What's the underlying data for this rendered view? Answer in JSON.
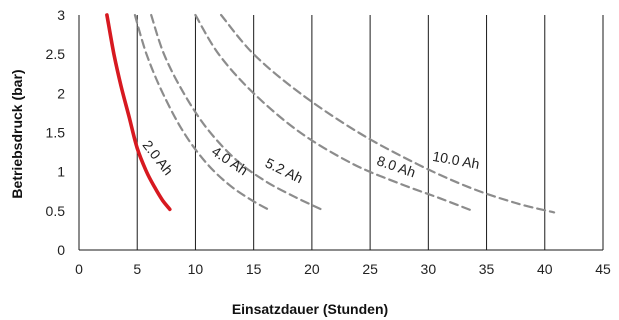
{
  "chart_data": {
    "type": "line",
    "xlabel": "Einsatzdauer (Stunden)",
    "ylabel": "Betriebsdruck (bar)",
    "xlim": [
      0,
      45
    ],
    "ylim": [
      0,
      3
    ],
    "x_ticks": [
      "0",
      "5",
      "10",
      "15",
      "20",
      "25",
      "30",
      "35",
      "40",
      "45"
    ],
    "y_ticks": [
      "0",
      "0.5",
      "1",
      "1.5",
      "2",
      "2.5",
      "3"
    ],
    "grid": "vertical lines only",
    "series": [
      {
        "name": "2.0 Ah",
        "color": "#d71920",
        "style": "solid",
        "points": [
          [
            2.4,
            3.0
          ],
          [
            3.0,
            2.5
          ],
          [
            3.6,
            2.1
          ],
          [
            4.3,
            1.7
          ],
          [
            5.0,
            1.3
          ],
          [
            5.8,
            1.0
          ],
          [
            6.5,
            0.8
          ],
          [
            7.2,
            0.63
          ],
          [
            7.8,
            0.52
          ]
        ]
      },
      {
        "name": "4.0 Ah",
        "color": "#8c8c8c",
        "style": "dashed",
        "points": [
          [
            4.8,
            3.0
          ],
          [
            5.8,
            2.5
          ],
          [
            7.2,
            2.0
          ],
          [
            9.0,
            1.5
          ],
          [
            11.0,
            1.1
          ],
          [
            13.0,
            0.82
          ],
          [
            15.0,
            0.62
          ],
          [
            16.5,
            0.5
          ]
        ]
      },
      {
        "name": "5.2 Ah",
        "color": "#8c8c8c",
        "style": "dashed",
        "points": [
          [
            6.2,
            3.0
          ],
          [
            7.3,
            2.5
          ],
          [
            9.0,
            2.0
          ],
          [
            11.0,
            1.55
          ],
          [
            13.5,
            1.15
          ],
          [
            16.0,
            0.88
          ],
          [
            18.5,
            0.68
          ],
          [
            20.8,
            0.52
          ]
        ]
      },
      {
        "name": "8.0 Ah",
        "color": "#8c8c8c",
        "style": "dashed",
        "points": [
          [
            10.0,
            3.0
          ],
          [
            12.0,
            2.5
          ],
          [
            15.0,
            2.0
          ],
          [
            19.0,
            1.5
          ],
          [
            23.5,
            1.1
          ],
          [
            27.5,
            0.85
          ],
          [
            31.0,
            0.66
          ],
          [
            33.8,
            0.5
          ]
        ]
      },
      {
        "name": "10.0 Ah",
        "color": "#8c8c8c",
        "style": "dashed",
        "points": [
          [
            12.2,
            3.0
          ],
          [
            15.0,
            2.5
          ],
          [
            19.0,
            2.0
          ],
          [
            24.0,
            1.5
          ],
          [
            29.0,
            1.1
          ],
          [
            33.5,
            0.8
          ],
          [
            37.5,
            0.6
          ],
          [
            40.8,
            0.48
          ]
        ]
      }
    ],
    "annotations": [
      "2.0 Ah",
      "4.0 Ah",
      "5.2 Ah",
      "8.0 Ah",
      "10.0 Ah"
    ]
  }
}
